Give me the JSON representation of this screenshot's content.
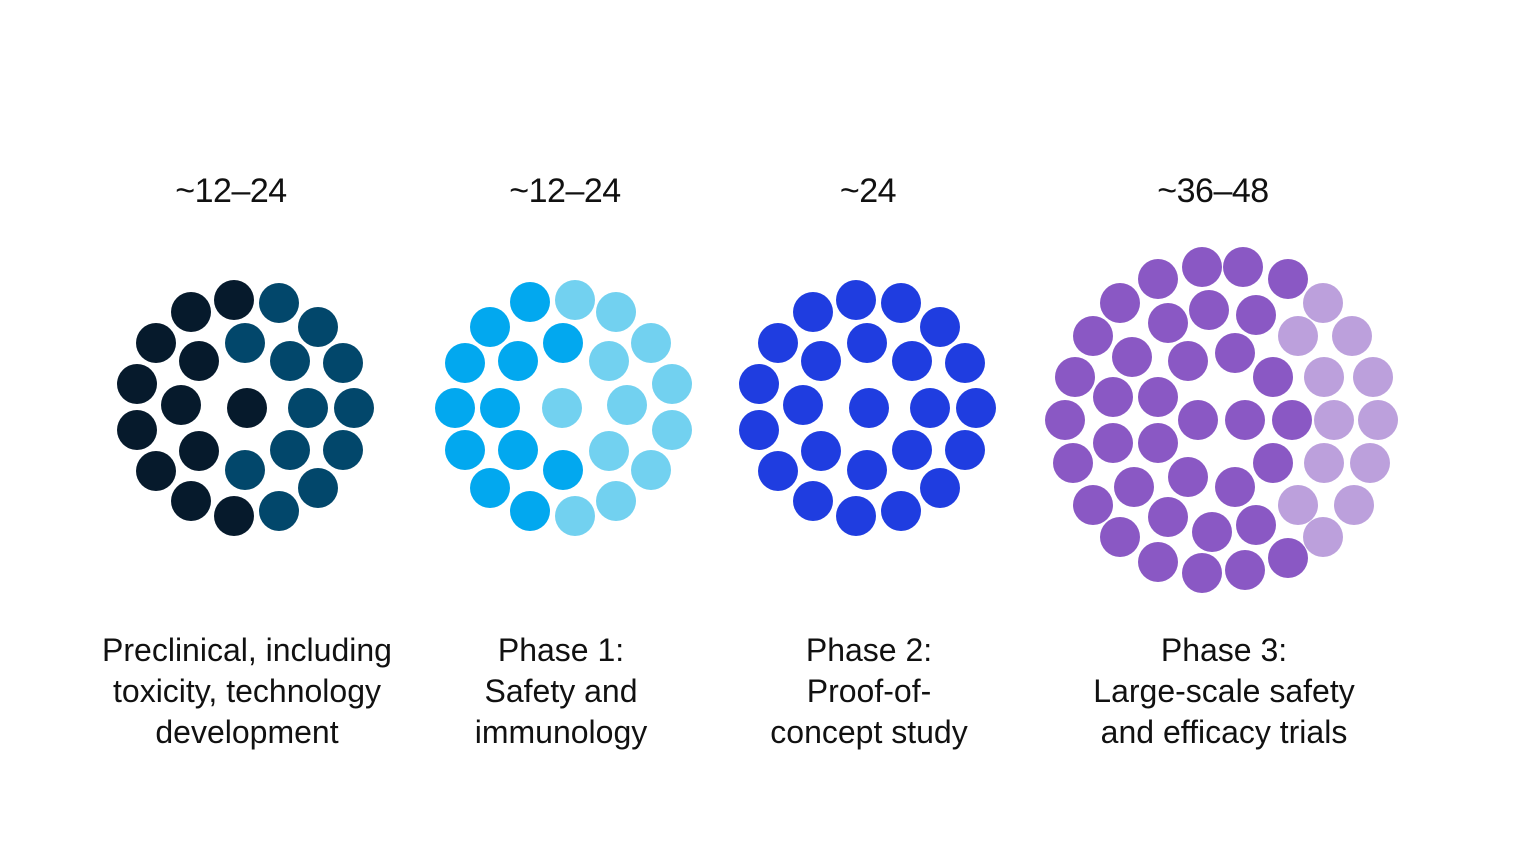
{
  "stages": [
    {
      "duration": "~12–24",
      "label_lines": [
        "Preclinical, including",
        "toxicity, technology",
        "development"
      ],
      "colors": [
        "#061a2c",
        "#02476b"
      ]
    },
    {
      "duration": "~12–24",
      "label_lines": [
        "Phase 1:",
        "Safety and",
        "immunology"
      ],
      "colors": [
        "#02a8ef",
        "#72d1f0"
      ]
    },
    {
      "duration": "~24",
      "label_lines": [
        "Phase 2:",
        "Proof-of-",
        "concept study"
      ],
      "colors": [
        "#1f3de0",
        "#1f3de0"
      ]
    },
    {
      "duration": "~36–48",
      "label_lines": [
        "Phase 3:",
        "Large-scale safety",
        "and efficacy trials"
      ],
      "colors": [
        "#8a58c4",
        "#bca0dc"
      ]
    }
  ]
}
